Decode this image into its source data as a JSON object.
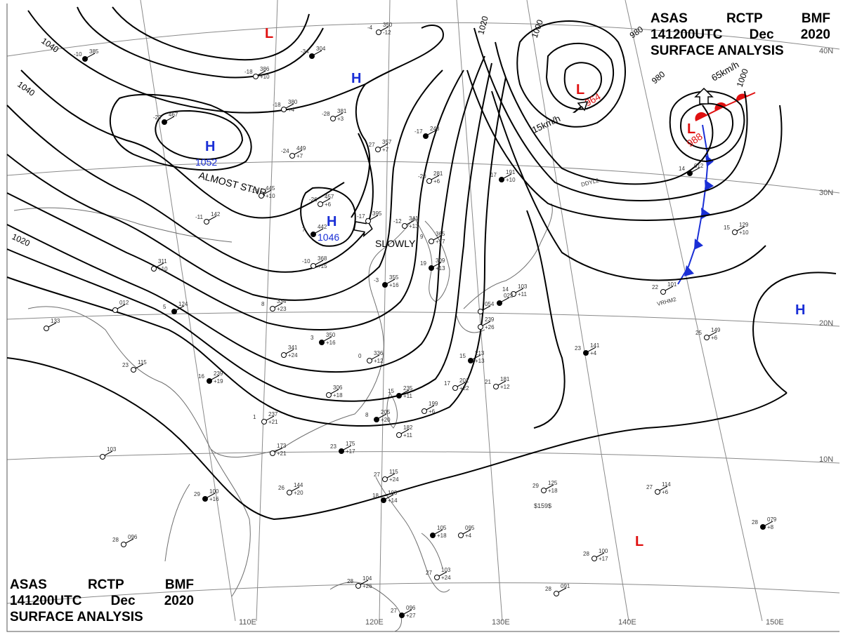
{
  "header": {
    "agency": "ASAS",
    "station": "RCTP",
    "code": "BMF",
    "time": "141200UTC",
    "month": "Dec",
    "year": "2020",
    "title": "SURFACE ANALYSIS"
  },
  "colors": {
    "isobar": "#000000",
    "grid": "#8a8a8a",
    "coast": "#6e6e6e",
    "high": "#1a2fd6",
    "low": "#e01010",
    "cold_front": "#1a2fd6",
    "warm_front": "#e01010"
  },
  "grid_labels": {
    "longitudes": [
      "110E",
      "120E",
      "130E",
      "140E",
      "150E"
    ],
    "latitudes": [
      "40N",
      "30N",
      "20N",
      "10N"
    ]
  },
  "isobars": [
    "1040",
    "1040",
    "1020",
    "1020",
    "1000",
    "980",
    "980",
    "1000"
  ],
  "pressure_systems": [
    {
      "type": "high",
      "symbol": "H",
      "value": "1052",
      "note": "ALMOST STNR"
    },
    {
      "type": "high",
      "symbol": "H",
      "value": "1046",
      "note": "SLOWLY"
    },
    {
      "type": "high",
      "symbol": "H",
      "value": "",
      "note": ""
    },
    {
      "type": "high",
      "symbol": "H",
      "value": "",
      "note": ""
    },
    {
      "type": "low",
      "symbol": "L",
      "value": "964",
      "note": "15km/h"
    },
    {
      "type": "low",
      "symbol": "L",
      "value": "988",
      "note": "65km/h"
    },
    {
      "type": "low",
      "symbol": "L",
      "value": "",
      "note": ""
    },
    {
      "type": "low",
      "symbol": "L",
      "value": "",
      "note": ""
    }
  ],
  "ship_labels": [
    "DDYL2",
    "VRHM2"
  ],
  "stations": [
    {
      "t": "-10",
      "p": "385"
    },
    {
      "t": "-18",
      "p": "386",
      "d": "+10"
    },
    {
      "t": "-18",
      "p": "380",
      "d": "+4"
    },
    {
      "t": "-22",
      "p": "467"
    },
    {
      "t": "-28",
      "p": "381",
      "d": "+3"
    },
    {
      "t": "-4",
      "p": "350",
      "d": "-12"
    },
    {
      "t": "-34",
      "p": "304"
    },
    {
      "t": "-24",
      "p": "449",
      "d": "+7"
    },
    {
      "t": "-27",
      "p": "357",
      "d": "+7"
    },
    {
      "t": "-17",
      "p": "243"
    },
    {
      "t": "-19",
      "p": "445",
      "d": "+10"
    },
    {
      "t": "-26",
      "p": "457",
      "d": "+6"
    },
    {
      "t": "7",
      "p": "442"
    },
    {
      "t": "-17",
      "p": "395"
    },
    {
      "t": "-20",
      "p": "281",
      "d": "+6"
    },
    {
      "t": "17",
      "p": "191",
      "d": "+10"
    },
    {
      "t": "-12",
      "p": "341",
      "d": "+13"
    },
    {
      "t": "-10",
      "p": "368",
      "d": "+15"
    },
    {
      "t": "-3",
      "p": "355",
      "d": "+16"
    },
    {
      "t": "-11",
      "p": "142"
    },
    {
      "t": "9",
      "p": "365",
      "d": "+17"
    },
    {
      "t": "19",
      "p": "309",
      "d": "+13"
    },
    {
      "t": "",
      "p": "311",
      "d": "+10"
    },
    {
      "t": "",
      "p": "012"
    },
    {
      "t": "5",
      "p": "124"
    },
    {
      "t": "",
      "p": "133"
    },
    {
      "t": "8",
      "p": "334",
      "d": "+23"
    },
    {
      "t": "3",
      "p": "350",
      "d": "+16"
    },
    {
      "t": "",
      "p": "341",
      "d": "+24"
    },
    {
      "t": "23",
      "p": "115"
    },
    {
      "t": "16",
      "p": "239",
      "d": "+19"
    },
    {
      "t": "0",
      "p": "336",
      "d": "+12"
    },
    {
      "t": "",
      "p": "306",
      "d": "+18"
    },
    {
      "t": "15",
      "p": "235",
      "d": "+11"
    },
    {
      "t": "",
      "p": "199",
      "d": "+6"
    },
    {
      "t": "1",
      "p": "237",
      "d": "+21"
    },
    {
      "t": "8",
      "p": "205",
      "d": "+20"
    },
    {
      "t": "",
      "p": "182",
      "d": "+11"
    },
    {
      "t": "",
      "p": "173",
      "d": "+21"
    },
    {
      "t": "23",
      "p": "175",
      "d": "+17"
    },
    {
      "t": "",
      "p": "103"
    },
    {
      "t": "26",
      "p": "144",
      "d": "+20"
    },
    {
      "t": "29",
      "p": "100",
      "d": "+16"
    },
    {
      "t": "28",
      "p": "096"
    },
    {
      "t": "14",
      "p": "103",
      "d": "+11"
    },
    {
      "t": "",
      "p": "022"
    },
    {
      "t": "",
      "p": "054"
    },
    {
      "t": "",
      "p": "239",
      "d": "+26"
    },
    {
      "t": "15",
      "p": "213",
      "d": "+13"
    },
    {
      "t": "17",
      "p": "201",
      "d": "+22"
    },
    {
      "t": "21",
      "p": "181",
      "d": "+12"
    },
    {
      "t": "23",
      "p": "141",
      "d": "+4"
    },
    {
      "t": "25",
      "p": "149",
      "d": "+6"
    },
    {
      "t": "22",
      "p": "101"
    },
    {
      "t": "14",
      "p": "012"
    },
    {
      "t": "15",
      "p": "129",
      "d": "+10"
    },
    {
      "t": "27",
      "p": "115",
      "d": "+24"
    },
    {
      "t": "18",
      "p": "103",
      "d": "+14"
    },
    {
      "t": "29",
      "p": "125",
      "d": "+18"
    },
    {
      "t": "27",
      "p": "114",
      "d": "+6"
    },
    {
      "t": "",
      "p": "105",
      "d": "+18"
    },
    {
      "t": "",
      "p": "095",
      "d": "+4"
    },
    {
      "t": "28",
      "p": "100",
      "d": "+17"
    },
    {
      "t": "28",
      "p": "079",
      "d": "+8"
    },
    {
      "t": "27",
      "p": "103",
      "d": "+24"
    },
    {
      "t": "28",
      "p": "104",
      "d": "+26"
    },
    {
      "t": "27",
      "p": "096",
      "d": "+27"
    },
    {
      "t": "28",
      "p": "091"
    }
  ],
  "misc_texts": [
    "$159$",
    "+19",
    "1",
    "B"
  ]
}
